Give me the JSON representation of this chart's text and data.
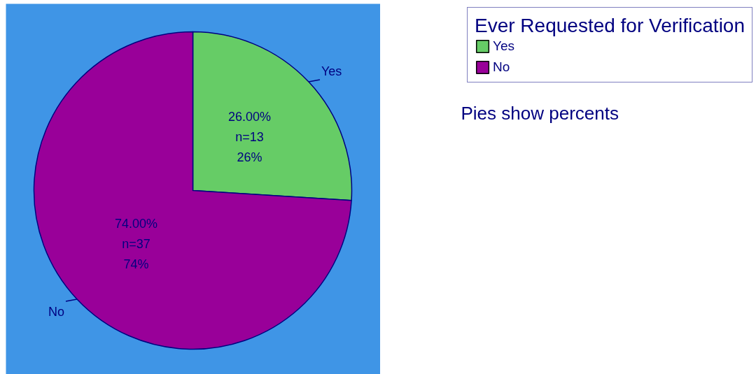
{
  "chart_data": {
    "type": "pie",
    "categories": [
      "Yes",
      "No"
    ],
    "values": [
      26,
      74
    ],
    "colors": [
      "#66cc66",
      "#990099"
    ],
    "legend_title": "Ever Requested for Verification",
    "legend": "top right",
    "value_labels": [
      "26.00%\nn=13\n26%",
      "74.00%\nn=37\n74%"
    ],
    "annotations": [
      "Pies show percents"
    ]
  }
}
